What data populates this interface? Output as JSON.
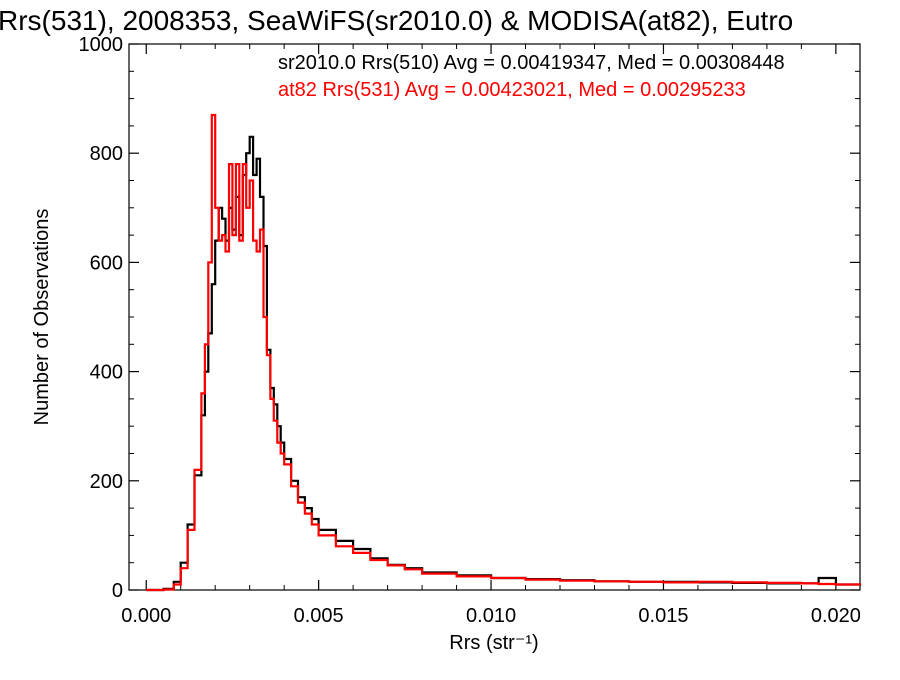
{
  "chart_data": {
    "type": "line",
    "title": "Rrs(531), 2008353, SeaWiFS(sr2010.0) & MODISA(at82), Eutro",
    "xlabel": "Rrs (str⁻¹)",
    "ylabel": "Number of Observations",
    "xlim": [
      -0.0005,
      0.0207
    ],
    "ylim": [
      0,
      1000
    ],
    "x_ticks": [
      "0.000",
      "0.005",
      "0.010",
      "0.015",
      "0.020"
    ],
    "x_tick_values": [
      0.0,
      0.005,
      0.01,
      0.015,
      0.02
    ],
    "y_ticks": [
      "0",
      "200",
      "400",
      "600",
      "800",
      "1000"
    ],
    "y_tick_values": [
      0,
      200,
      400,
      600,
      800,
      1000
    ],
    "legend_position": "top-right",
    "series_colors": {
      "seawifs": "#000000",
      "modisa": "#ff0000"
    },
    "annotations": [
      {
        "text": "sr2010.0 Rrs(510) Avg = 0.00419347, Med = 0.00308448",
        "color": "#000000"
      },
      {
        "text": "at82 Rrs(531) Avg = 0.00423021, Med = 0.00295233",
        "color": "#ff0000"
      }
    ],
    "series": [
      {
        "label": "sr2010.0 Rrs(510)",
        "color": "#000000",
        "x": [
          0.0,
          0.0005,
          0.0008,
          0.001,
          0.0012,
          0.0014,
          0.0016,
          0.0017,
          0.0018,
          0.0019,
          0.002,
          0.0021,
          0.0022,
          0.0023,
          0.0024,
          0.0025,
          0.0026,
          0.0027,
          0.0028,
          0.0029,
          0.003,
          0.0031,
          0.0032,
          0.0033,
          0.0034,
          0.0035,
          0.0036,
          0.0037,
          0.0038,
          0.0039,
          0.004,
          0.0042,
          0.0044,
          0.0046,
          0.0048,
          0.005,
          0.0055,
          0.006,
          0.0065,
          0.007,
          0.0075,
          0.008,
          0.009,
          0.01,
          0.011,
          0.012,
          0.013,
          0.014,
          0.015,
          0.016,
          0.017,
          0.018,
          0.019,
          0.0195,
          0.02,
          0.0207
        ],
        "values": [
          0,
          2,
          15,
          50,
          120,
          210,
          320,
          400,
          470,
          560,
          640,
          700,
          680,
          640,
          700,
          660,
          720,
          650,
          760,
          800,
          830,
          760,
          790,
          720,
          630,
          440,
          370,
          340,
          300,
          270,
          240,
          200,
          170,
          150,
          130,
          110,
          90,
          75,
          58,
          46,
          40,
          32,
          27,
          22,
          20,
          18,
          16,
          15,
          15,
          14,
          13,
          12,
          12,
          22,
          10,
          8
        ]
      },
      {
        "label": "at82 Rrs(531)",
        "color": "#ff0000",
        "x": [
          0.0,
          0.0005,
          0.0008,
          0.001,
          0.0012,
          0.0014,
          0.0016,
          0.0017,
          0.0018,
          0.0019,
          0.002,
          0.0021,
          0.0022,
          0.0023,
          0.0024,
          0.0025,
          0.0026,
          0.0027,
          0.0028,
          0.0029,
          0.003,
          0.0031,
          0.0032,
          0.0033,
          0.0034,
          0.0035,
          0.0036,
          0.0037,
          0.0038,
          0.0039,
          0.004,
          0.0042,
          0.0044,
          0.0046,
          0.0048,
          0.005,
          0.0055,
          0.006,
          0.0065,
          0.007,
          0.0075,
          0.008,
          0.009,
          0.01,
          0.011,
          0.012,
          0.013,
          0.014,
          0.015,
          0.016,
          0.017,
          0.018,
          0.019,
          0.0195,
          0.02,
          0.0207
        ],
        "values": [
          0,
          1,
          10,
          40,
          110,
          220,
          360,
          450,
          600,
          870,
          700,
          640,
          650,
          620,
          780,
          650,
          780,
          640,
          780,
          700,
          750,
          640,
          620,
          660,
          500,
          430,
          350,
          310,
          270,
          250,
          230,
          190,
          160,
          140,
          120,
          100,
          80,
          68,
          55,
          45,
          38,
          30,
          25,
          22,
          19,
          17,
          16,
          15,
          14,
          15,
          14,
          13,
          12,
          11,
          10,
          9
        ]
      }
    ]
  }
}
